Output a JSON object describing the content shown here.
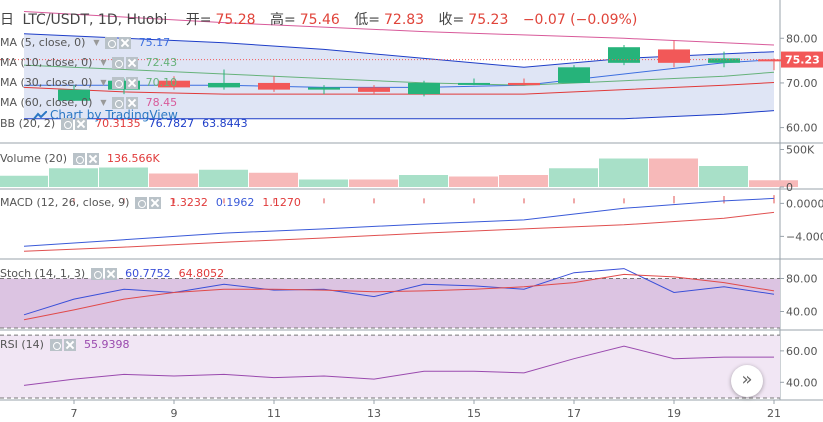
{
  "header": {
    "period_icon": "calendar-icon",
    "symbol": "LTC/USDT, 1D, Huobi",
    "open_label": "开=",
    "open": "75.28",
    "high_label": "高=",
    "high": "75.46",
    "low_label": "低=",
    "low": "72.83",
    "close_label": "收=",
    "close": "75.23",
    "change": "−0.07 (−0.09%)"
  },
  "watermark": "Chart by TradingView",
  "indicators": {
    "ma5": {
      "name": "MA (5, close, 0)",
      "value": "75.17"
    },
    "ma10": {
      "name": "MA (10, close, 0)",
      "value": "72.43"
    },
    "ma30": {
      "name": "MA (30, close, 0)",
      "value": "70.10"
    },
    "ma60": {
      "name": "MA (60, close, 0)",
      "value": "78.45"
    },
    "bb": {
      "name": "BB (20, 2)",
      "v1": "70.3135",
      "v2": "76.7827",
      "v3": "63.8443"
    },
    "volume": {
      "name": "Volume (20)",
      "value": "136.566K"
    },
    "macd": {
      "name": "MACD (12, 26, close, 9)",
      "v1": "1.3232",
      "v2": "0.1962",
      "v3": "1.1270"
    },
    "stoch": {
      "name": "Stoch (14, 1, 3)",
      "v1": "60.7752",
      "v2": "64.8052"
    },
    "rsi": {
      "name": "RSI (14)",
      "value": "55.9398"
    }
  },
  "axis": {
    "price_ticks": [
      "80.00",
      "70.00",
      "60.00"
    ],
    "price_last": "75.23",
    "volume_ticks": [
      "500K",
      "0"
    ],
    "macd_ticks": [
      "0.0000",
      "−4.0000"
    ],
    "stoch_ticks": [
      "80.00",
      "40.00"
    ],
    "rsi_ticks": [
      "60.00",
      "40.00"
    ],
    "x_ticks": [
      "7",
      "9",
      "11",
      "13",
      "15",
      "17",
      "19",
      "21"
    ]
  },
  "colors": {
    "up": "#26b37a",
    "down": "#f25858",
    "volume_up": "#a8e0c8",
    "volume_down": "#f7b9b9",
    "bb_band": "#1e3ec8",
    "bb_fill": "#dfe5f5",
    "ma_blue": "#3d6fe0",
    "ma_red": "#e03a3a",
    "ma_green": "#66b27a",
    "ma_pink": "#d85a9a",
    "macd_line": "#3a5ad8",
    "signal_line": "#e05050",
    "stoch_k": "#3a4fd8",
    "stoch_d": "#e04a4a",
    "stoch_fill": "#dcc4e2",
    "rsi_line": "#9a4aae",
    "rsi_fill": "#f1e6f4"
  },
  "chart_data": {
    "type": "candlestick",
    "symbol": "LTC/USDT",
    "interval": "1D",
    "days": [
      6,
      7,
      8,
      9,
      10,
      11,
      12,
      13,
      14,
      15,
      16,
      17,
      18,
      19,
      20,
      21
    ],
    "candles": [
      {
        "day": 7,
        "open": 66.0,
        "high": 69.5,
        "low": 66.0,
        "close": 68.5
      },
      {
        "day": 8,
        "open": 68.5,
        "high": 71.0,
        "low": 67.5,
        "close": 70.5
      },
      {
        "day": 9,
        "open": 70.5,
        "high": 71.5,
        "low": 68.5,
        "close": 69.0
      },
      {
        "day": 10,
        "open": 69.0,
        "high": 73.0,
        "low": 68.5,
        "close": 70.0
      },
      {
        "day": 11,
        "open": 70.0,
        "high": 71.5,
        "low": 68.0,
        "close": 68.5
      },
      {
        "day": 12,
        "open": 68.5,
        "high": 69.5,
        "low": 67.5,
        "close": 69.0
      },
      {
        "day": 13,
        "open": 69.0,
        "high": 69.5,
        "low": 67.5,
        "close": 68.0
      },
      {
        "day": 14,
        "open": 67.5,
        "high": 70.5,
        "low": 67.0,
        "close": 70.0
      },
      {
        "day": 15,
        "open": 70.0,
        "high": 71.0,
        "low": 69.5,
        "close": 70.0
      },
      {
        "day": 16,
        "open": 70.0,
        "high": 71.0,
        "low": 69.5,
        "close": 69.5
      },
      {
        "day": 17,
        "open": 70.0,
        "high": 74.0,
        "low": 70.0,
        "close": 73.5
      },
      {
        "day": 18,
        "open": 74.5,
        "high": 78.5,
        "low": 74.0,
        "close": 78.0
      },
      {
        "day": 19,
        "open": 77.5,
        "high": 79.5,
        "low": 73.5,
        "close": 74.5
      },
      {
        "day": 20,
        "open": 74.5,
        "high": 77.0,
        "low": 73.5,
        "close": 75.5
      },
      {
        "day": 21,
        "open": 75.28,
        "high": 75.46,
        "low": 72.83,
        "close": 75.23
      }
    ],
    "bollinger": {
      "days": [
        6,
        8,
        10,
        12,
        14,
        16,
        18,
        20,
        21
      ],
      "upper": [
        81.0,
        80.0,
        79.0,
        77.5,
        75.5,
        73.5,
        75.5,
        76.5,
        77.0
      ],
      "middle": [
        70.5,
        70.0,
        69.5,
        69.0,
        68.5,
        68.5,
        70.0,
        70.3,
        70.3
      ],
      "lower": [
        62.0,
        62.0,
        62.0,
        62.0,
        62.0,
        62.0,
        62.0,
        63.0,
        63.8
      ]
    },
    "ma_series": [
      {
        "name": "MA (5, close, 0)",
        "color": "#3d6fe0",
        "days": [
          6,
          8,
          10,
          12,
          14,
          16,
          18,
          20,
          21
        ],
        "values": [
          69.5,
          69.5,
          69.5,
          69.0,
          69.0,
          69.5,
          72.0,
          74.5,
          75.2
        ]
      },
      {
        "name": "MA (10, close, 0)",
        "color": "#66b27a",
        "days": [
          6,
          8,
          10,
          12,
          14,
          16,
          18,
          20,
          21
        ],
        "values": [
          74.0,
          73.0,
          72.0,
          71.0,
          70.0,
          69.5,
          70.5,
          71.5,
          72.4
        ]
      },
      {
        "name": "MA (30, close, 0)",
        "color": "#e03a3a",
        "days": [
          6,
          8,
          10,
          12,
          14,
          16,
          18,
          20,
          21
        ],
        "values": [
          69.0,
          68.0,
          67.5,
          67.5,
          67.5,
          67.5,
          68.5,
          69.5,
          70.1
        ]
      },
      {
        "name": "MA (60, close, 0)",
        "color": "#d85a9a",
        "days": [
          6,
          10,
          14,
          18,
          21
        ],
        "values": [
          86.0,
          83.5,
          81.5,
          80.0,
          78.5
        ]
      }
    ],
    "price_ylim": [
      57,
      87
    ],
    "last_price": 75.23,
    "volume": {
      "days": [
        6,
        7,
        8,
        9,
        10,
        11,
        12,
        13,
        14,
        15,
        16,
        17,
        18,
        19,
        20,
        21
      ],
      "values": [
        150000,
        250000,
        260000,
        180000,
        230000,
        190000,
        100000,
        100000,
        160000,
        140000,
        160000,
        250000,
        380000,
        380000,
        280000,
        90000
      ],
      "direction": [
        "up",
        "up",
        "up",
        "down",
        "up",
        "down",
        "up",
        "down",
        "up",
        "down",
        "down",
        "up",
        "up",
        "down",
        "up",
        "down"
      ],
      "ylim": [
        0,
        560000
      ]
    },
    "macd": {
      "days": [
        6,
        8,
        10,
        12,
        14,
        16,
        18,
        20,
        21
      ],
      "macd": [
        -5.2,
        -4.4,
        -3.6,
        -3.1,
        -2.5,
        -2.0,
        -0.6,
        0.3,
        0.6
      ],
      "signal": [
        -5.8,
        -5.3,
        -4.7,
        -4.2,
        -3.6,
        -3.1,
        -2.6,
        -1.8,
        -1.1
      ],
      "histogram_days": [
        7,
        8,
        9,
        10,
        11,
        12,
        13,
        14,
        15,
        16,
        17,
        18,
        19,
        20,
        21
      ],
      "histogram": [
        0.6,
        0.6,
        0.6,
        0.6,
        0.6,
        0.6,
        0.6,
        0.6,
        0.6,
        0.6,
        0.6,
        0.6,
        0.9,
        0.9,
        1.0
      ],
      "ylim": [
        -6.5,
        1.5
      ]
    },
    "stoch": {
      "days": [
        6,
        7,
        8,
        9,
        10,
        11,
        12,
        13,
        14,
        15,
        16,
        17,
        18,
        19,
        20,
        21
      ],
      "k": [
        36,
        55,
        67,
        63,
        73,
        66,
        67,
        58,
        73,
        71,
        67,
        87,
        92,
        63,
        70,
        61
      ],
      "d": [
        30,
        42,
        55,
        63,
        67,
        67,
        66,
        64,
        65,
        67,
        70,
        75,
        85,
        82,
        75,
        65
      ],
      "bands": [
        80,
        20
      ],
      "ylim": [
        20,
        100
      ]
    },
    "rsi": {
      "days": [
        6,
        7,
        8,
        9,
        10,
        11,
        12,
        13,
        14,
        15,
        16,
        17,
        18,
        19,
        20,
        21
      ],
      "values": [
        38,
        42,
        45,
        44,
        45,
        43,
        44,
        42,
        47,
        47,
        46,
        55,
        63,
        55,
        56,
        56
      ],
      "bands": [
        70,
        30
      ],
      "ylim": [
        30,
        72
      ]
    }
  }
}
